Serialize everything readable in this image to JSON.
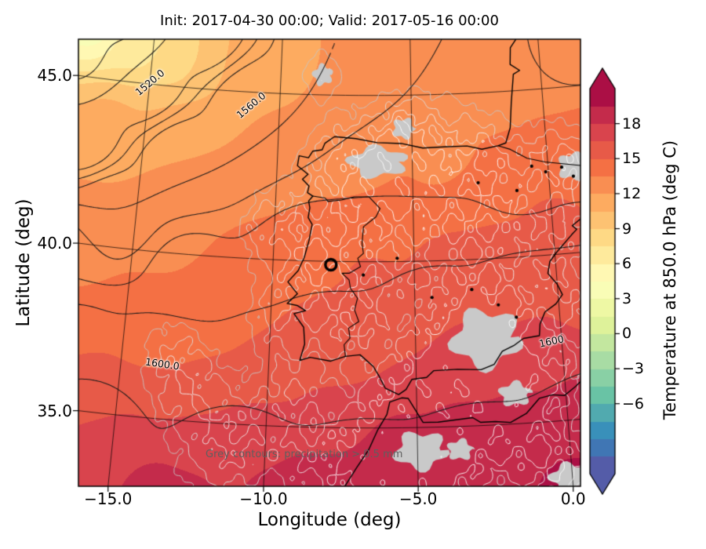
{
  "figure": {
    "title": "Init: 2017-04-30 00:00; Valid: 2017-05-16 00:00",
    "background": "#ffffff"
  },
  "axes": {
    "xlabel": "Longitude (deg)",
    "ylabel": "Latitude (deg)",
    "xticks": [
      {
        "v": -15,
        "label": "−15.0"
      },
      {
        "v": -10,
        "label": "−10.0"
      },
      {
        "v": -5,
        "label": "−5.0"
      },
      {
        "v": 0,
        "label": "0.0"
      }
    ],
    "yticks": [
      {
        "v": 45,
        "label": "45.0"
      },
      {
        "v": 40,
        "label": "40.0"
      },
      {
        "v": 35,
        "label": "35.0"
      }
    ]
  },
  "colorbar": {
    "label": "Temperature at 850.0 hPa (deg C)",
    "vmin": -12,
    "vmax": 21,
    "step": 1.5,
    "extend": "both",
    "ticks": [
      {
        "v": 18,
        "label": "18"
      },
      {
        "v": 15,
        "label": "15"
      },
      {
        "v": 12,
        "label": "12"
      },
      {
        "v": 9,
        "label": "9"
      },
      {
        "v": 6,
        "label": "6"
      },
      {
        "v": 3,
        "label": "3"
      },
      {
        "v": 0,
        "label": "0"
      },
      {
        "v": -3,
        "label": "−3"
      },
      {
        "v": -6,
        "label": "−6"
      }
    ],
    "colormap": [
      [
        0,
        "#5e4fa2"
      ],
      [
        0.1,
        "#3288bd"
      ],
      [
        0.2,
        "#66c2a5"
      ],
      [
        0.3,
        "#abdda4"
      ],
      [
        0.4,
        "#e6f598"
      ],
      [
        0.5,
        "#ffffbf"
      ],
      [
        0.6,
        "#fee08b"
      ],
      [
        0.7,
        "#fdae61"
      ],
      [
        0.8,
        "#f46d43"
      ],
      [
        0.9,
        "#d53e4f"
      ],
      [
        1,
        "#9e0142"
      ]
    ]
  },
  "annotation": {
    "text": "Grey contours: precipitation > 0.5 mm",
    "color": "#5f5f5f"
  },
  "chart_data": {
    "type": "heatmap",
    "field": "Temperature at 850.0 hPa (deg C)",
    "init": "2017-04-30 00:00",
    "valid": "2017-05-16 00:00",
    "xlabel": "Longitude (deg)",
    "ylabel": "Latitude (deg)",
    "xlim_approx": [
      -17.9,
      1.7
    ],
    "ylim_approx": [
      32.8,
      46.7
    ],
    "graticule": {
      "lons": [
        -15,
        -10,
        -5,
        0
      ],
      "lats": [
        35,
        40,
        45
      ]
    },
    "temperature_points": [
      [
        -17.5,
        46.8,
        3.5
      ],
      [
        -15.5,
        46.4,
        6.5
      ],
      [
        -14,
        45.9,
        8.5
      ],
      [
        -12.5,
        45.3,
        10.5
      ],
      [
        -10.5,
        45.8,
        11.5
      ],
      [
        -8,
        45.6,
        12
      ],
      [
        -5,
        45.6,
        12
      ],
      [
        -2,
        45.6,
        12.5
      ],
      [
        1,
        45.8,
        12.5
      ],
      [
        -16.5,
        43.5,
        11
      ],
      [
        -13.5,
        43.2,
        12
      ],
      [
        -10,
        43.2,
        12.5
      ],
      [
        -7,
        43.2,
        12.5
      ],
      [
        -4,
        43.1,
        13
      ],
      [
        -1,
        43,
        13.5
      ],
      [
        1.5,
        43,
        14
      ],
      [
        -17,
        40.5,
        12.5
      ],
      [
        -14,
        40.5,
        13
      ],
      [
        -11,
        40.8,
        13.5
      ],
      [
        -8.5,
        41,
        13.5
      ],
      [
        -6,
        41,
        14.5
      ],
      [
        -3,
        41.3,
        15
      ],
      [
        0,
        41,
        15.2
      ],
      [
        -17,
        38,
        13.5
      ],
      [
        -14,
        38,
        14
      ],
      [
        -11.5,
        38.5,
        14
      ],
      [
        -8.5,
        39.3,
        15
      ],
      [
        -6.5,
        39.5,
        15.2
      ],
      [
        -4,
        39.5,
        15.5
      ],
      [
        -1.5,
        39.2,
        16
      ],
      [
        0.8,
        39,
        16
      ],
      [
        -16,
        35.8,
        15.5
      ],
      [
        -13,
        36.2,
        15
      ],
      [
        -10,
        36.8,
        15.5
      ],
      [
        -7.5,
        37.3,
        16
      ],
      [
        -5.5,
        37.3,
        16.5
      ],
      [
        -3,
        37.2,
        17
      ],
      [
        -0.8,
        37.3,
        16.8
      ],
      [
        -15,
        33.8,
        18
      ],
      [
        -12.5,
        34.2,
        17.5
      ],
      [
        -10,
        34.5,
        17.8
      ],
      [
        -7.5,
        34.8,
        18
      ],
      [
        -5.5,
        34.6,
        18.3
      ],
      [
        -3.5,
        34.7,
        18.6
      ],
      [
        -1.5,
        34.8,
        19
      ],
      [
        0.5,
        35.2,
        18.8
      ],
      [
        -13,
        32.8,
        19
      ],
      [
        -9,
        33,
        19
      ],
      [
        -6,
        33,
        19.2
      ],
      [
        -3,
        33.2,
        19.5
      ],
      [
        0,
        33,
        20
      ]
    ],
    "geopotential": {
      "contour_interval": 10,
      "points": [
        [
          -16.5,
          47.5,
          1500
        ],
        [
          -18,
          45.8,
          1506
        ],
        [
          -13,
          46.8,
          1520
        ],
        [
          -15.2,
          45.0,
          1520
        ],
        [
          -17.3,
          43.2,
          1520
        ],
        [
          -8,
          46.6,
          1560
        ],
        [
          -11.1,
          44.55,
          1560
        ],
        [
          -13.6,
          42.8,
          1560
        ],
        [
          -15.9,
          41.0,
          1560
        ],
        [
          -17.5,
          39.5,
          1580
        ],
        [
          -13,
          39.5,
          1585
        ],
        [
          -9,
          40,
          1584
        ],
        [
          -5,
          41.5,
          1580
        ],
        [
          -1,
          42.5,
          1578
        ],
        [
          1.5,
          43.5,
          1576
        ],
        [
          0,
          45.5,
          1570
        ],
        [
          1.5,
          46,
          1568
        ],
        [
          -4,
          44.5,
          1570
        ],
        [
          -17,
          36.9,
          1600
        ],
        [
          -13.6,
          36.6,
          1600
        ],
        [
          -10,
          36.3,
          1600
        ],
        [
          -6,
          36.3,
          1600
        ],
        [
          -3,
          36.8,
          1600
        ],
        [
          -0.3,
          37.4,
          1600
        ],
        [
          1.5,
          37.6,
          1600
        ],
        [
          -16,
          34.5,
          1604
        ],
        [
          -11,
          33.8,
          1605
        ],
        [
          -7,
          33.2,
          1606
        ],
        [
          -3,
          33.5,
          1607
        ],
        [
          0.8,
          34.5,
          1605
        ],
        [
          -8.5,
          38.2,
          1593
        ],
        [
          -4.5,
          38.8,
          1592
        ],
        [
          -1,
          38.5,
          1593
        ]
      ],
      "labels": [
        {
          "text": "1520.0",
          "lon": -15.0,
          "lat": 45.05,
          "rot": -40
        },
        {
          "text": "1560.0",
          "lon": -11.1,
          "lat": 44.6,
          "rot": -40
        },
        {
          "text": "1600.0",
          "lon": -13.6,
          "lat": 36.65,
          "rot": 8
        },
        {
          "text": "1600",
          "lon": -0.35,
          "lat": 37.42,
          "rot": -12
        }
      ]
    },
    "precipitation": {
      "threshold_mm": 0.5,
      "levels": [
        0.5,
        1.2,
        2.2,
        3.5
      ],
      "bumps": [
        [
          -8.5,
          40.3,
          3,
          1.1
        ],
        [
          -6.5,
          41.4,
          2.5,
          0.9
        ],
        [
          -4.6,
          42.6,
          4,
          1.2
        ],
        [
          -2.4,
          42.9,
          2.5,
          0.8
        ],
        [
          -7.2,
          38.6,
          3,
          1.0
        ],
        [
          -5,
          39.6,
          1.6,
          0.7
        ],
        [
          -3,
          39.9,
          2,
          0.9
        ],
        [
          -1.6,
          41.3,
          2.5,
          0.9
        ],
        [
          -0.4,
          39.6,
          1.8,
          0.8
        ],
        [
          -2.4,
          37.8,
          5,
          1.1
        ],
        [
          -4.4,
          36.9,
          3.5,
          0.9
        ],
        [
          -6,
          35.7,
          2.5,
          0.9
        ],
        [
          -4,
          34.4,
          4,
          1.1
        ],
        [
          -6.6,
          33.8,
          3.5,
          1.0
        ],
        [
          -9,
          36.1,
          1.8,
          0.8
        ],
        [
          -11.2,
          34.4,
          2.5,
          1.0
        ],
        [
          -12.6,
          35.9,
          1.6,
          0.8
        ],
        [
          -0.6,
          36.2,
          2.5,
          0.8
        ],
        [
          0.4,
          38.3,
          1.8,
          0.7
        ],
        [
          -1.2,
          34.2,
          3,
          0.9
        ],
        [
          -7.6,
          42.9,
          2.2,
          0.9
        ],
        [
          -9.6,
          38.2,
          1.6,
          0.7
        ],
        [
          0,
          42.7,
          2,
          0.8
        ],
        [
          -13.2,
          36.9,
          1.2,
          0.7
        ],
        [
          -2.2,
          35.4,
          2.5,
          0.8
        ],
        [
          0.4,
          40.9,
          1.6,
          0.7
        ],
        [
          -5.6,
          33.9,
          3,
          1.0
        ],
        [
          -8.6,
          34.2,
          2,
          0.9
        ],
        [
          -10.2,
          41,
          1.2,
          0.7
        ],
        [
          -3.4,
          41.1,
          1.5,
          0.7
        ],
        [
          -5.3,
          44.0,
          1.5,
          0.6
        ],
        [
          -8.4,
          45.6,
          1.2,
          0.5
        ],
        [
          0.9,
          42.6,
          1.8,
          0.6
        ],
        [
          -1.7,
          35.9,
          1.6,
          0.6
        ],
        [
          -3.6,
          34.3,
          1.4,
          0.6
        ],
        [
          -0.1,
          33.4,
          2,
          0.8
        ],
        [
          -6.3,
          43.05,
          1.8,
          0.7
        ],
        [
          -2.7,
          37.6,
          2.2,
          0.8
        ],
        [
          -4.9,
          34.3,
          1.8,
          0.7
        ]
      ],
      "grey_patches": [
        [
          -6.3,
          43.0,
          1.0,
          0.45
        ],
        [
          -2.6,
          37.6,
          1.1,
          0.85
        ],
        [
          -4.9,
          34.3,
          0.8,
          0.55
        ],
        [
          0.9,
          42.6,
          0.5,
          0.4
        ],
        [
          -1.7,
          35.9,
          0.5,
          0.35
        ],
        [
          -3.6,
          34.3,
          0.4,
          0.3
        ],
        [
          -0.1,
          33.3,
          0.6,
          0.4
        ],
        [
          -8.4,
          45.6,
          0.35,
          0.3
        ],
        [
          -5.3,
          44.0,
          0.4,
          0.3
        ]
      ]
    },
    "coastlines": [
      [
        [
          -0.5,
          46.9
        ],
        [
          -1.1,
          46.3
        ],
        [
          -1.15,
          45.8
        ],
        [
          -0.8,
          45.6
        ],
        [
          -1.05,
          45.5
        ],
        [
          -1.2,
          44.65
        ],
        [
          -1.3,
          43.9
        ],
        [
          -1.5,
          43.45
        ],
        [
          -1.8,
          43.38
        ],
        [
          -2.4,
          43.3
        ],
        [
          -2.95,
          43.42
        ],
        [
          -3.8,
          43.42
        ],
        [
          -4.6,
          43.4
        ],
        [
          -5.4,
          43.55
        ],
        [
          -6.3,
          43.58
        ],
        [
          -7.1,
          43.7
        ],
        [
          -7.9,
          43.75
        ],
        [
          -8.25,
          43.55
        ],
        [
          -8.35,
          43.35
        ],
        [
          -8.7,
          43.3
        ],
        [
          -8.85,
          43.1
        ],
        [
          -9.2,
          43.15
        ],
        [
          -9.25,
          42.85
        ],
        [
          -8.85,
          42.6
        ],
        [
          -9.05,
          42.45
        ],
        [
          -8.8,
          42.25
        ],
        [
          -8.85,
          42.05
        ],
        [
          -8.65,
          41.95
        ],
        [
          -8.8,
          41.8
        ],
        [
          -8.75,
          41.6
        ],
        [
          -8.8,
          41.3
        ],
        [
          -8.65,
          41.1
        ],
        [
          -8.75,
          40.6
        ],
        [
          -8.9,
          40.1
        ],
        [
          -9.1,
          39.7
        ],
        [
          -9.45,
          39.35
        ],
        [
          -9.1,
          39.0
        ],
        [
          -9.45,
          38.7
        ],
        [
          -9.1,
          38.65
        ],
        [
          -8.8,
          38.5
        ],
        [
          -9.2,
          38.4
        ],
        [
          -8.85,
          38.0
        ],
        [
          -8.8,
          37.5
        ],
        [
          -8.95,
          37.0
        ],
        [
          -8.6,
          37.1
        ],
        [
          -7.9,
          37.0
        ],
        [
          -7.4,
          37.15
        ],
        [
          -6.9,
          37.2
        ],
        [
          -6.45,
          36.85
        ],
        [
          -6.25,
          36.55
        ],
        [
          -6.05,
          36.2
        ],
        [
          -5.6,
          36.0
        ],
        [
          -5.35,
          36.15
        ],
        [
          -5.15,
          36.45
        ],
        [
          -4.65,
          36.5
        ],
        [
          -4.4,
          36.7
        ],
        [
          -3.6,
          36.72
        ],
        [
          -2.8,
          36.68
        ],
        [
          -2.35,
          36.82
        ],
        [
          -2.05,
          37.2
        ],
        [
          -1.65,
          37.35
        ],
        [
          -1.3,
          37.55
        ],
        [
          -0.75,
          37.6
        ],
        [
          -0.7,
          37.95
        ],
        [
          -0.5,
          38.3
        ],
        [
          -0.1,
          38.52
        ],
        [
          0.15,
          38.78
        ],
        [
          0.0,
          39.1
        ],
        [
          -0.3,
          39.45
        ],
        [
          -0.2,
          39.8
        ],
        [
          0.05,
          40.05
        ],
        [
          0.65,
          40.55
        ],
        [
          0.85,
          40.7
        ],
        [
          0.7,
          40.82
        ],
        [
          1.1,
          41.05
        ],
        [
          1.7,
          41.22
        ]
      ],
      [
        [
          -7.4,
          33.2
        ],
        [
          -7.0,
          33.8
        ],
        [
          -6.6,
          34.35
        ],
        [
          -6.3,
          34.95
        ],
        [
          -6.0,
          35.4
        ],
        [
          -5.9,
          35.78
        ],
        [
          -5.5,
          35.9
        ],
        [
          -5.28,
          35.88
        ],
        [
          -4.8,
          35.15
        ],
        [
          -4.3,
          35.15
        ],
        [
          -3.75,
          35.2
        ],
        [
          -3.15,
          35.25
        ],
        [
          -2.9,
          35.1
        ],
        [
          -2.4,
          35.1
        ],
        [
          -1.9,
          35.05
        ],
        [
          -1.35,
          35.3
        ],
        [
          -0.9,
          35.72
        ],
        [
          -0.45,
          35.8
        ],
        [
          -0.05,
          35.75
        ],
        [
          0.35,
          36.0
        ],
        [
          0.95,
          36.45
        ],
        [
          1.7,
          36.6
        ]
      ]
    ],
    "borders": [
      [
        [
          -1.8,
          43.38
        ],
        [
          -1.35,
          43.25
        ],
        [
          -0.75,
          42.95
        ],
        [
          -0.1,
          42.8
        ],
        [
          0.55,
          42.7
        ],
        [
          1.2,
          42.6
        ],
        [
          1.8,
          42.5
        ]
      ],
      [
        [
          -8.65,
          41.95
        ],
        [
          -8.2,
          41.9
        ],
        [
          -8.1,
          41.8
        ],
        [
          -7.6,
          41.85
        ],
        [
          -7.15,
          41.95
        ],
        [
          -6.6,
          41.95
        ],
        [
          -6.2,
          41.6
        ],
        [
          -6.35,
          41.35
        ],
        [
          -6.8,
          41.05
        ],
        [
          -6.85,
          40.55
        ],
        [
          -6.8,
          40.25
        ],
        [
          -7.0,
          40.1
        ],
        [
          -6.9,
          39.85
        ],
        [
          -7.3,
          39.65
        ],
        [
          -7.55,
          39.65
        ],
        [
          -7.3,
          39.45
        ],
        [
          -7.25,
          39.2
        ],
        [
          -7.0,
          38.9
        ],
        [
          -7.1,
          38.55
        ],
        [
          -6.95,
          38.2
        ],
        [
          -7.3,
          38.0
        ],
        [
          -7.25,
          37.7
        ],
        [
          -7.45,
          37.5
        ],
        [
          -7.4,
          37.15
        ]
      ]
    ],
    "lakes": [
      [
        -0.6,
        42.7
      ],
      [
        -0.1,
        42.5
      ],
      [
        0.5,
        42.6
      ],
      [
        0.9,
        42.3
      ],
      [
        -1.2,
        42.0
      ],
      [
        -5.6,
        40.1
      ],
      [
        -3.0,
        39.1
      ],
      [
        -2.1,
        38.6
      ],
      [
        -1.5,
        38.2
      ],
      [
        -4.4,
        38.9
      ],
      [
        -6.8,
        39.6
      ],
      [
        -2.6,
        42.3
      ]
    ],
    "marker": {
      "lon": -7.95,
      "lat": 39.9
    }
  }
}
